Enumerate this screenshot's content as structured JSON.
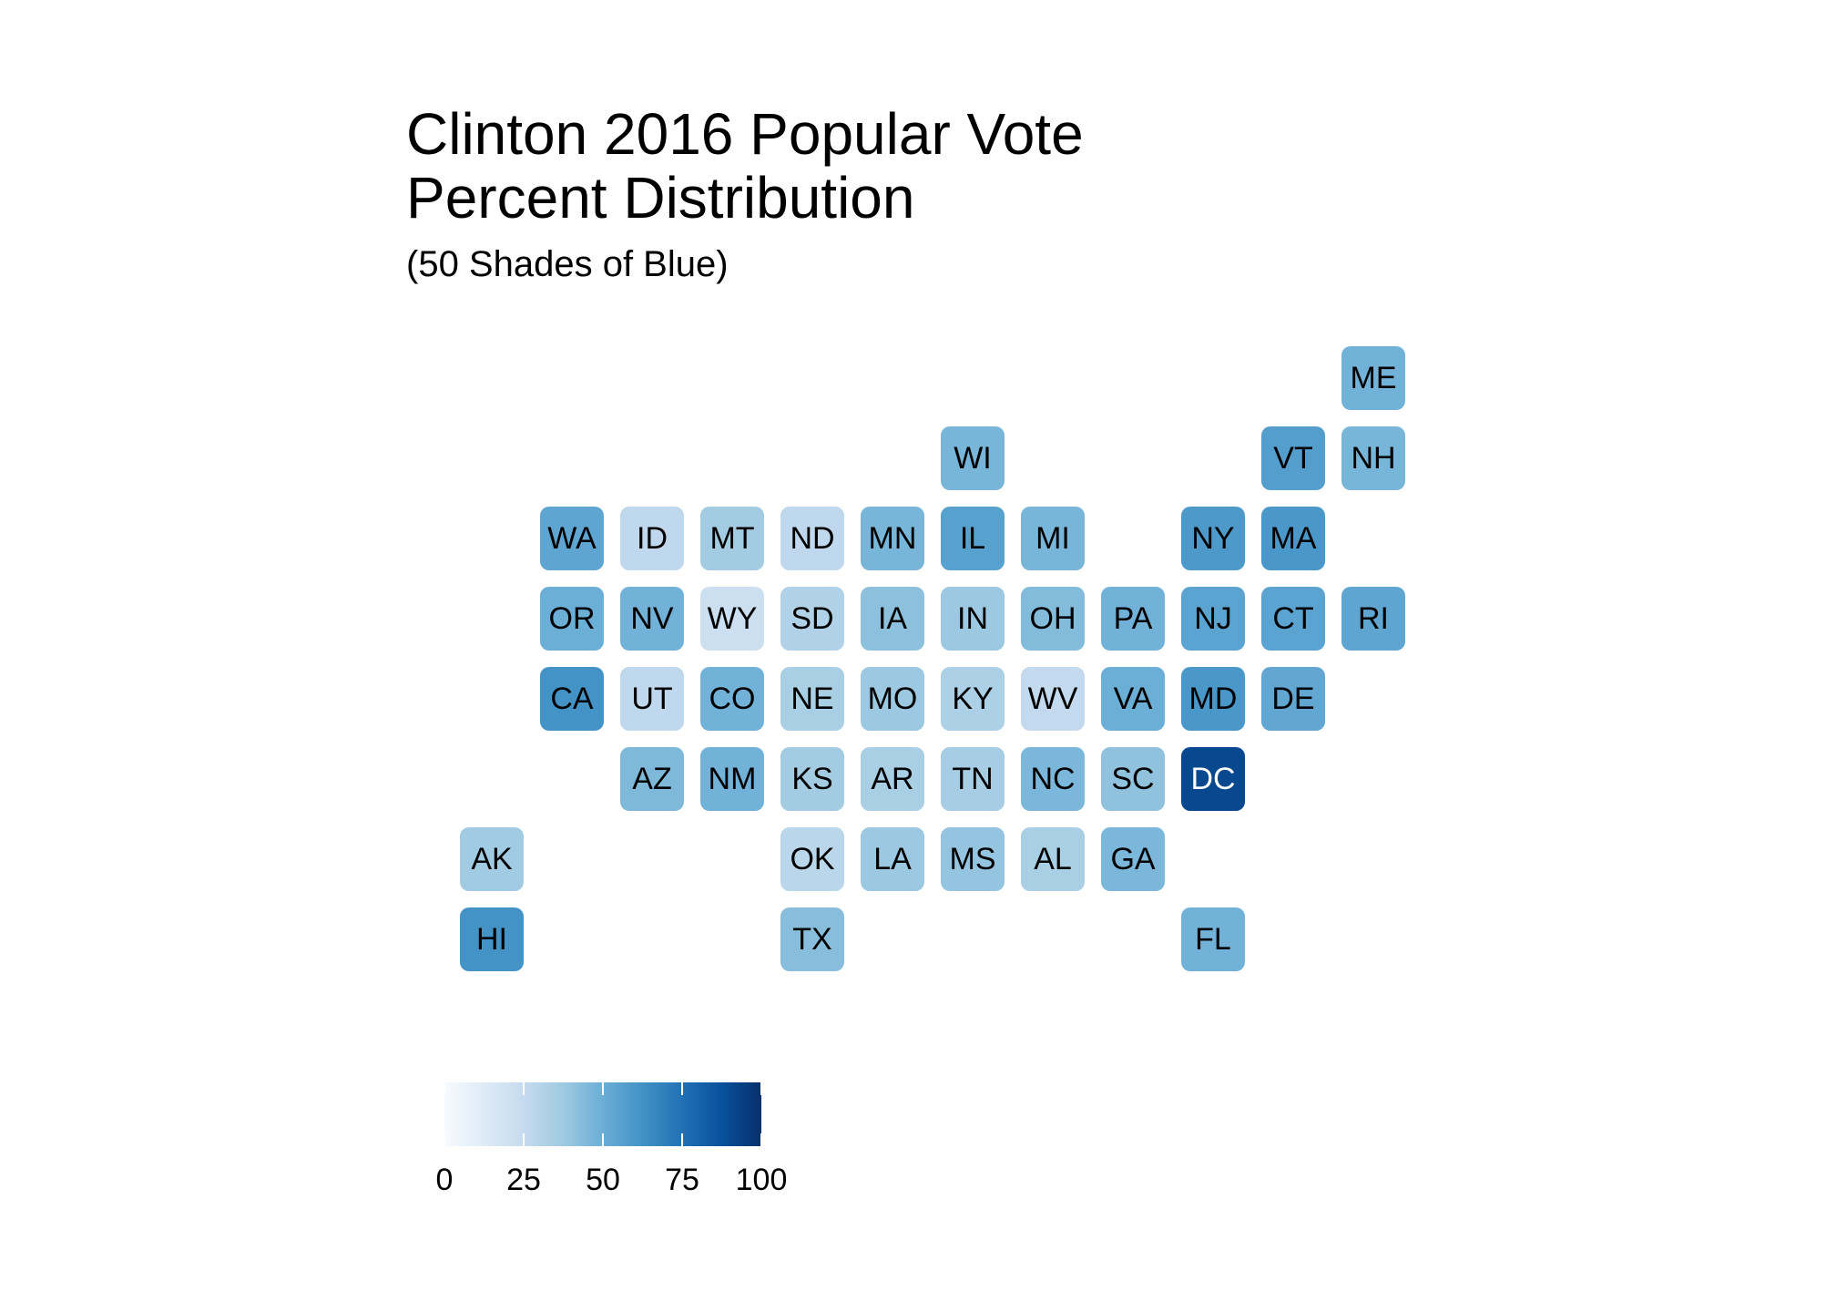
{
  "title": [
    "Clinton 2016 Popular Vote",
    "Percent Distribution"
  ],
  "subtitle": "(50 Shades of Blue)",
  "legend": {
    "min": 0,
    "max": 100,
    "labels": [
      "0",
      "25",
      "50",
      "75",
      "100"
    ],
    "palette": [
      "#f7fbff",
      "#deebf7",
      "#c6dbef",
      "#9ecae1",
      "#6baed6",
      "#4292c6",
      "#2171b5",
      "#08519c",
      "#08306b"
    ]
  },
  "chart_data": {
    "type": "heatmap",
    "value_range": [
      0,
      100
    ],
    "tiles": [
      {
        "state": "ME",
        "col": 11,
        "row": 0,
        "value": 48
      },
      {
        "state": "WI",
        "col": 6,
        "row": 1,
        "value": 47
      },
      {
        "state": "VT",
        "col": 10,
        "row": 1,
        "value": 57
      },
      {
        "state": "NH",
        "col": 11,
        "row": 1,
        "value": 47
      },
      {
        "state": "WA",
        "col": 1,
        "row": 2,
        "value": 54
      },
      {
        "state": "ID",
        "col": 2,
        "row": 2,
        "value": 27
      },
      {
        "state": "MT",
        "col": 3,
        "row": 2,
        "value": 36
      },
      {
        "state": "ND",
        "col": 4,
        "row": 2,
        "value": 27
      },
      {
        "state": "MN",
        "col": 5,
        "row": 2,
        "value": 47
      },
      {
        "state": "IL",
        "col": 6,
        "row": 2,
        "value": 56
      },
      {
        "state": "MI",
        "col": 7,
        "row": 2,
        "value": 47
      },
      {
        "state": "NY",
        "col": 9,
        "row": 2,
        "value": 59
      },
      {
        "state": "MA",
        "col": 10,
        "row": 2,
        "value": 60
      },
      {
        "state": "OR",
        "col": 1,
        "row": 3,
        "value": 50
      },
      {
        "state": "NV",
        "col": 2,
        "row": 3,
        "value": 48
      },
      {
        "state": "WY",
        "col": 3,
        "row": 3,
        "value": 22
      },
      {
        "state": "SD",
        "col": 4,
        "row": 3,
        "value": 32
      },
      {
        "state": "IA",
        "col": 5,
        "row": 3,
        "value": 42
      },
      {
        "state": "IN",
        "col": 6,
        "row": 3,
        "value": 38
      },
      {
        "state": "OH",
        "col": 7,
        "row": 3,
        "value": 44
      },
      {
        "state": "PA",
        "col": 8,
        "row": 3,
        "value": 48
      },
      {
        "state": "NJ",
        "col": 9,
        "row": 3,
        "value": 55
      },
      {
        "state": "CT",
        "col": 10,
        "row": 3,
        "value": 55
      },
      {
        "state": "RI",
        "col": 11,
        "row": 3,
        "value": 54
      },
      {
        "state": "CA",
        "col": 1,
        "row": 4,
        "value": 62
      },
      {
        "state": "UT",
        "col": 2,
        "row": 4,
        "value": 27
      },
      {
        "state": "CO",
        "col": 3,
        "row": 4,
        "value": 48
      },
      {
        "state": "NE",
        "col": 4,
        "row": 4,
        "value": 34
      },
      {
        "state": "MO",
        "col": 5,
        "row": 4,
        "value": 38
      },
      {
        "state": "KY",
        "col": 6,
        "row": 4,
        "value": 33
      },
      {
        "state": "WV",
        "col": 7,
        "row": 4,
        "value": 26
      },
      {
        "state": "VA",
        "col": 8,
        "row": 4,
        "value": 50
      },
      {
        "state": "MD",
        "col": 9,
        "row": 4,
        "value": 60
      },
      {
        "state": "DE",
        "col": 10,
        "row": 4,
        "value": 53
      },
      {
        "state": "AZ",
        "col": 2,
        "row": 5,
        "value": 45
      },
      {
        "state": "NM",
        "col": 3,
        "row": 5,
        "value": 48
      },
      {
        "state": "KS",
        "col": 4,
        "row": 5,
        "value": 36
      },
      {
        "state": "AR",
        "col": 5,
        "row": 5,
        "value": 34
      },
      {
        "state": "TN",
        "col": 6,
        "row": 5,
        "value": 35
      },
      {
        "state": "NC",
        "col": 7,
        "row": 5,
        "value": 46
      },
      {
        "state": "SC",
        "col": 8,
        "row": 5,
        "value": 41
      },
      {
        "state": "DC",
        "col": 9,
        "row": 5,
        "value": 91
      },
      {
        "state": "AK",
        "col": 0,
        "row": 6,
        "value": 37
      },
      {
        "state": "OK",
        "col": 4,
        "row": 6,
        "value": 29
      },
      {
        "state": "LA",
        "col": 5,
        "row": 6,
        "value": 38
      },
      {
        "state": "MS",
        "col": 6,
        "row": 6,
        "value": 40
      },
      {
        "state": "AL",
        "col": 7,
        "row": 6,
        "value": 34
      },
      {
        "state": "GA",
        "col": 8,
        "row": 6,
        "value": 46
      },
      {
        "state": "HI",
        "col": 0,
        "row": 7,
        "value": 62
      },
      {
        "state": "TX",
        "col": 4,
        "row": 7,
        "value": 43
      },
      {
        "state": "FL",
        "col": 9,
        "row": 7,
        "value": 48
      }
    ]
  }
}
